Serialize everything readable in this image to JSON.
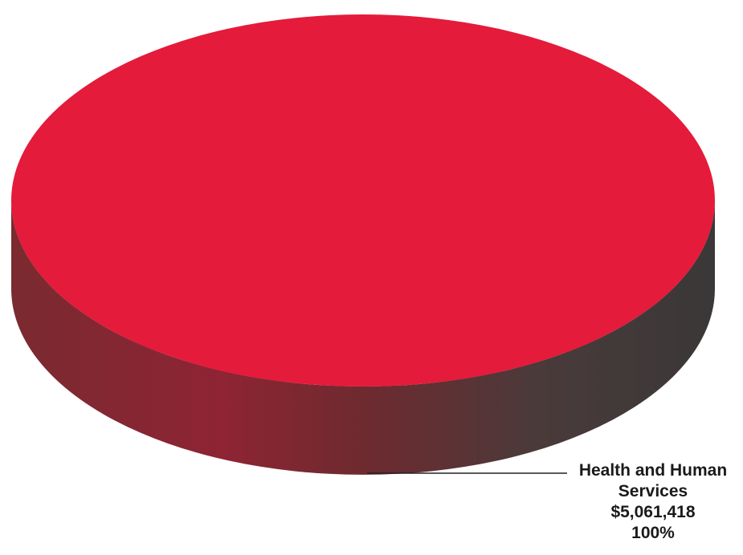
{
  "chart_data": {
    "type": "pie",
    "style": "3d",
    "slices": [
      {
        "name": "Health and Human Services",
        "value": 5061418,
        "value_label": "$5,061,418",
        "percent": 100,
        "percent_label": "100%",
        "label_lines": [
          "Health and Human",
          "Services"
        ],
        "color": "#e41b3b",
        "side_color": "#8a2a35"
      }
    ],
    "title": "",
    "legend": "none"
  }
}
